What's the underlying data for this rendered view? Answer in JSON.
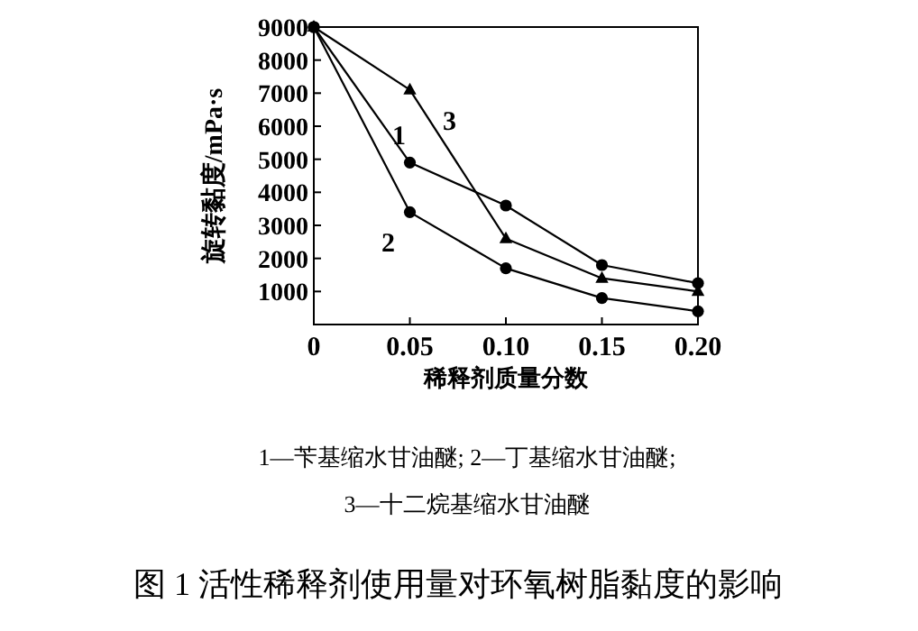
{
  "chart_data": {
    "type": "line",
    "title": "图 1  活性稀释剂使用量对环氧树脂黏度的影响",
    "xlabel": "稀释剂质量分数",
    "ylabel": "旋转黏度/mPa·s",
    "annotations": [
      "1—苄基缩水甘油醚; 2—丁基缩水甘油醚;",
      "3—十二烷基缩水甘油醚"
    ],
    "x": [
      0,
      0.05,
      0.1,
      0.15,
      0.2
    ],
    "series": [
      {
        "name": "1",
        "color": "#000000",
        "marker": "circle",
        "values": [
          9000,
          4900,
          3600,
          1800,
          1250
        ]
      },
      {
        "name": "2",
        "color": "#000000",
        "marker": "circle",
        "values": [
          9000,
          3400,
          1700,
          800,
          400
        ]
      },
      {
        "name": "3",
        "color": "#000000",
        "marker": "triangle",
        "values": [
          9000,
          7100,
          2600,
          1400,
          1000
        ]
      }
    ],
    "xlim": [
      0,
      0.2
    ],
    "xticks": [
      0,
      {
        "value": 0.05,
        "label": "0.05"
      },
      {
        "value": 0.1,
        "label": "0.10"
      },
      {
        "value": 0.15,
        "label": "0.15"
      },
      {
        "value": 0.2,
        "label": "0.20"
      }
    ],
    "ylim": [
      0,
      9000
    ],
    "yticks": [
      1000,
      2000,
      3000,
      4000,
      5000,
      6000,
      7000,
      8000,
      9000
    ],
    "grid": false,
    "line_style": "solid"
  }
}
